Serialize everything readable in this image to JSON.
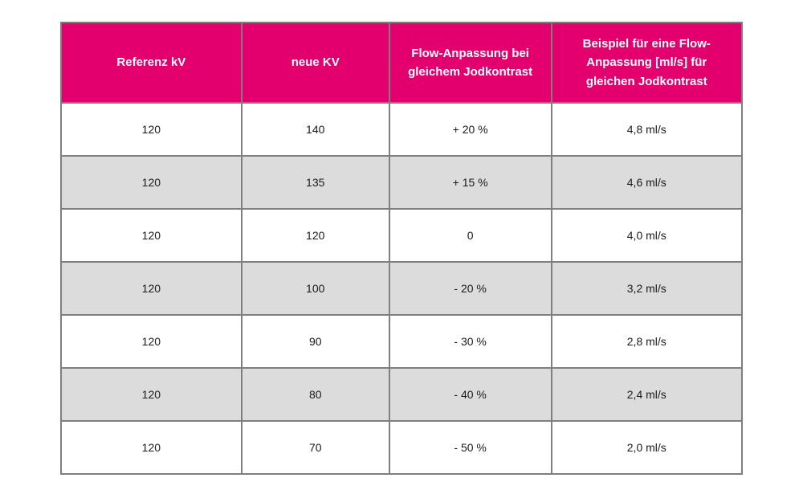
{
  "chart_data": {
    "type": "table",
    "columns": [
      "Referenz kV",
      "neue KV",
      "Flow-Anpassung bei gleichem Jodkontrast",
      "Beispiel für eine Flow-Anpassung [ml/s] für gleichen Jodkontrast"
    ],
    "rows": [
      [
        "120",
        "140",
        "+ 20 %",
        "4,8 ml/s"
      ],
      [
        "120",
        "135",
        "+ 15 %",
        "4,6 ml/s"
      ],
      [
        "120",
        "120",
        "0",
        "4,0 ml/s"
      ],
      [
        "120",
        "100",
        "- 20 %",
        "3,2 ml/s"
      ],
      [
        "120",
        "90",
        "- 30 %",
        "2,8 ml/s"
      ],
      [
        "120",
        "80",
        "- 40 %",
        "2,4 ml/s"
      ],
      [
        "120",
        "70",
        "- 50 %",
        "2,0 ml/s"
      ]
    ],
    "colors": {
      "header_bg": "#e3006e",
      "header_text": "#ffffff",
      "row_bg": "#ffffff",
      "row_alt_bg": "#dcdcdc",
      "border": "#7f7f7f",
      "cell_text": "#1a1a1a"
    }
  }
}
